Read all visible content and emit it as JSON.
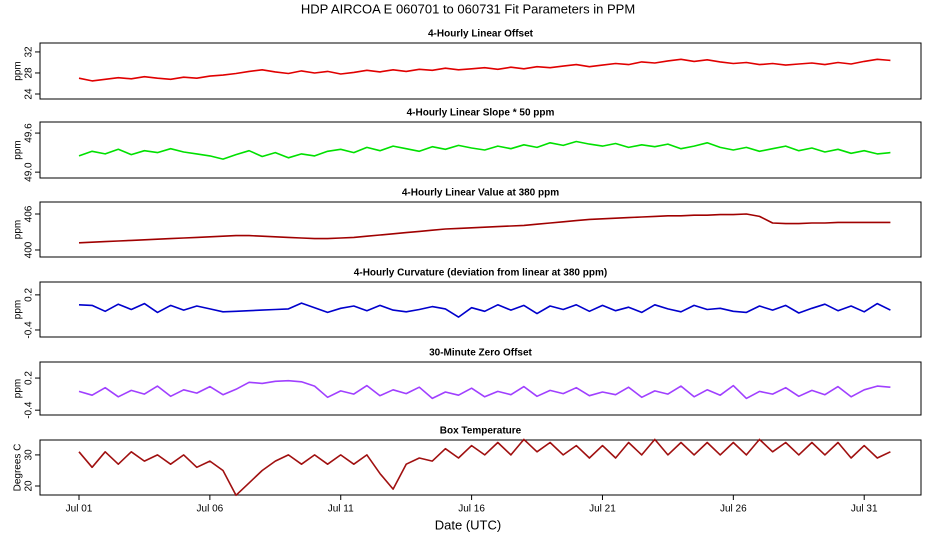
{
  "title": "HDP   AIRCOA E   060701 to 060731   Fit Parameters in PPM",
  "xlabel": "Date (UTC)",
  "chart_data": [
    {
      "type": "line",
      "title": "4-Hourly Linear Offset",
      "ylabel": "ppm",
      "color": "#e00000",
      "xlim": [
        -0.49,
        33.17
      ],
      "ylim": [
        23.05,
        33.7
      ],
      "yticks": [
        24,
        28,
        32
      ],
      "x": [
        1,
        1.5,
        2,
        2.5,
        3,
        3.5,
        4,
        4.5,
        5,
        5.5,
        6,
        6.5,
        7,
        7.5,
        8,
        8.5,
        9,
        9.5,
        10,
        10.5,
        11,
        11.5,
        12,
        12.5,
        13,
        13.5,
        14,
        14.5,
        15,
        15.5,
        16,
        16.5,
        17,
        17.5,
        18,
        18.5,
        19,
        19.5,
        20,
        20.5,
        21,
        21.5,
        22,
        22.5,
        23,
        23.5,
        24,
        24.5,
        25,
        25.5,
        26,
        26.5,
        27,
        27.5,
        28,
        28.5,
        29,
        29.5,
        30,
        30.5,
        31,
        31.5,
        32
      ],
      "values": [
        27.0,
        26.5,
        26.8,
        27.1,
        26.9,
        27.3,
        27.0,
        26.8,
        27.2,
        27.0,
        27.4,
        27.6,
        27.9,
        28.3,
        28.6,
        28.2,
        27.9,
        28.4,
        28.0,
        28.3,
        27.8,
        28.1,
        28.5,
        28.2,
        28.6,
        28.3,
        28.7,
        28.5,
        28.9,
        28.6,
        28.8,
        29.0,
        28.7,
        29.1,
        28.8,
        29.2,
        29.0,
        29.3,
        29.6,
        29.2,
        29.5,
        29.8,
        29.6,
        30.1,
        29.9,
        30.3,
        30.6,
        30.2,
        30.5,
        30.1,
        29.8,
        30.0,
        29.6,
        29.8,
        29.5,
        29.7,
        29.9,
        29.6,
        30.0,
        29.7,
        30.2,
        30.6,
        30.4
      ]
    },
    {
      "type": "line",
      "title": "4-Hourly Linear Slope * 50 ppm",
      "ylabel": "ppm",
      "color": "#00e000",
      "xlim": [
        -0.49,
        33.17
      ],
      "ylim": [
        48.91,
        49.77
      ],
      "yticks": [
        {
          "value": 49,
          "label": "49.0"
        },
        49.6
      ],
      "x": [
        1,
        1.5,
        2,
        2.5,
        3,
        3.5,
        4,
        4.5,
        5,
        5.5,
        6,
        6.5,
        7,
        7.5,
        8,
        8.5,
        9,
        9.5,
        10,
        10.5,
        11,
        11.5,
        12,
        12.5,
        13,
        13.5,
        14,
        14.5,
        15,
        15.5,
        16,
        16.5,
        17,
        17.5,
        18,
        18.5,
        19,
        19.5,
        20,
        20.5,
        21,
        21.5,
        22,
        22.5,
        23,
        23.5,
        24,
        24.5,
        25,
        25.5,
        26,
        26.5,
        27,
        27.5,
        28,
        28.5,
        29,
        29.5,
        30,
        30.5,
        31,
        31.5,
        32
      ],
      "values": [
        49.25,
        49.32,
        49.28,
        49.35,
        49.27,
        49.33,
        49.3,
        49.36,
        49.31,
        49.28,
        49.25,
        49.2,
        49.27,
        49.33,
        49.24,
        49.3,
        49.22,
        49.28,
        49.25,
        49.32,
        49.35,
        49.3,
        49.38,
        49.33,
        49.4,
        49.36,
        49.32,
        49.39,
        49.35,
        49.41,
        49.37,
        49.34,
        49.4,
        49.36,
        49.42,
        49.38,
        49.45,
        49.41,
        49.47,
        49.43,
        49.4,
        49.44,
        49.38,
        49.42,
        49.39,
        49.43,
        49.36,
        49.4,
        49.45,
        49.38,
        49.34,
        49.38,
        49.32,
        49.36,
        49.4,
        49.33,
        49.37,
        49.31,
        49.35,
        49.29,
        49.33,
        49.28,
        49.3
      ]
    },
    {
      "type": "line",
      "title": "4-Hourly Linear Value at 380 ppm",
      "ylabel": "ppm",
      "color": "#a00000",
      "xlim": [
        -0.49,
        33.17
      ],
      "ylim": [
        398.83,
        408
      ],
      "yticks": [
        400,
        406
      ],
      "x": [
        1,
        1.5,
        2,
        2.5,
        3,
        3.5,
        4,
        4.5,
        5,
        5.5,
        6,
        6.5,
        7,
        7.5,
        8,
        8.5,
        9,
        9.5,
        10,
        10.5,
        11,
        11.5,
        12,
        12.5,
        13,
        13.5,
        14,
        14.5,
        15,
        15.5,
        16,
        16.5,
        17,
        17.5,
        18,
        18.5,
        19,
        19.5,
        20,
        20.5,
        21,
        21.5,
        22,
        22.5,
        23,
        23.5,
        24,
        24.5,
        25,
        25.5,
        26,
        26.5,
        27,
        27.5,
        28,
        28.5,
        29,
        29.5,
        30,
        30.5,
        31,
        31.5,
        32
      ],
      "values": [
        401.2,
        401.3,
        401.4,
        401.5,
        401.6,
        401.7,
        401.8,
        401.9,
        402.0,
        402.1,
        402.2,
        402.3,
        402.4,
        402.4,
        402.3,
        402.2,
        402.1,
        402.0,
        401.9,
        401.9,
        402.0,
        402.1,
        402.3,
        402.5,
        402.7,
        402.9,
        403.1,
        403.3,
        403.5,
        403.6,
        403.7,
        403.8,
        403.9,
        404.0,
        404.1,
        404.3,
        404.5,
        404.7,
        404.9,
        405.1,
        405.2,
        405.3,
        405.4,
        405.5,
        405.6,
        405.7,
        405.7,
        405.8,
        405.8,
        405.9,
        405.9,
        406.0,
        405.6,
        404.5,
        404.4,
        404.4,
        404.5,
        404.5,
        404.6,
        404.6,
        404.6,
        404.6,
        404.6
      ]
    },
    {
      "type": "line",
      "title": "4-Hourly Curvature (deviation from linear at 380 ppm)",
      "ylabel": "ppm",
      "color": "#0000cc",
      "xlim": [
        -0.49,
        33.17
      ],
      "ylim": [
        -0.52,
        0.42
      ],
      "yticks": [
        -0.4,
        0.2
      ],
      "x": [
        1,
        1.5,
        2,
        2.5,
        3,
        3.5,
        4,
        4.5,
        5,
        5.5,
        6,
        6.5,
        7,
        7.5,
        8,
        8.5,
        9,
        9.5,
        10,
        10.5,
        11,
        11.5,
        12,
        12.5,
        13,
        13.5,
        14,
        14.5,
        15,
        15.5,
        16,
        16.5,
        17,
        17.5,
        18,
        18.5,
        19,
        19.5,
        20,
        20.5,
        21,
        21.5,
        22,
        22.5,
        23,
        23.5,
        24,
        24.5,
        25,
        25.5,
        26,
        26.5,
        27,
        27.5,
        28,
        28.5,
        29,
        29.5,
        30,
        30.5,
        31,
        31.5,
        32
      ],
      "values": [
        0.03,
        0.02,
        -0.08,
        0.04,
        -0.05,
        0.05,
        -0.1,
        0.02,
        -0.06,
        0.01,
        -0.04,
        -0.09,
        -0.08,
        -0.07,
        -0.06,
        -0.05,
        -0.04,
        0.06,
        -0.02,
        -0.1,
        -0.03,
        0.01,
        -0.07,
        0.02,
        -0.06,
        -0.09,
        -0.05,
        0.0,
        -0.04,
        -0.18,
        -0.02,
        -0.08,
        0.03,
        -0.06,
        0.02,
        -0.12,
        0.01,
        -0.05,
        0.03,
        -0.08,
        0.02,
        -0.07,
        -0.01,
        -0.1,
        0.03,
        -0.04,
        -0.09,
        0.02,
        -0.05,
        -0.03,
        -0.08,
        -0.1,
        0.01,
        -0.06,
        0.02,
        -0.11,
        -0.03,
        0.04,
        -0.07,
        0.01,
        -0.09,
        0.05,
        -0.06
      ]
    },
    {
      "type": "line",
      "title": "30-Minute Zero Offset",
      "ylabel": "ppm",
      "color": "#a040ff",
      "xlim": [
        -0.49,
        33.17
      ],
      "ylim": [
        -0.49,
        0.5
      ],
      "yticks": [
        -0.4,
        0.2
      ],
      "x": [
        1,
        1.5,
        2,
        2.5,
        3,
        3.5,
        4,
        4.5,
        5,
        5.5,
        6,
        6.5,
        7,
        7.5,
        8,
        8.5,
        9,
        9.5,
        10,
        10.5,
        11,
        11.5,
        12,
        12.5,
        13,
        13.5,
        14,
        14.5,
        15,
        15.5,
        16,
        16.5,
        17,
        17.5,
        18,
        18.5,
        19,
        19.5,
        20,
        20.5,
        21,
        21.5,
        22,
        22.5,
        23,
        23.5,
        24,
        24.5,
        25,
        25.5,
        26,
        26.5,
        27,
        27.5,
        28,
        28.5,
        29,
        29.5,
        30,
        30.5,
        31,
        31.5,
        32
      ],
      "values": [
        -0.05,
        -0.12,
        0.02,
        -0.15,
        -0.03,
        -0.1,
        0.05,
        -0.14,
        -0.02,
        -0.08,
        0.04,
        -0.11,
        -0.01,
        0.12,
        0.1,
        0.14,
        0.15,
        0.13,
        0.05,
        -0.16,
        -0.04,
        -0.1,
        0.06,
        -0.13,
        -0.02,
        -0.09,
        0.03,
        -0.18,
        -0.06,
        -0.12,
        0.01,
        -0.15,
        -0.05,
        -0.11,
        0.04,
        -0.14,
        -0.03,
        -0.09,
        0.02,
        -0.13,
        -0.06,
        -0.11,
        0.03,
        -0.16,
        -0.04,
        -0.1,
        0.05,
        -0.15,
        -0.02,
        -0.12,
        0.06,
        -0.18,
        -0.05,
        -0.1,
        0.02,
        -0.14,
        -0.03,
        -0.11,
        0.04,
        -0.15,
        -0.02,
        0.05,
        0.03
      ]
    },
    {
      "type": "line",
      "title": "Box Temperature",
      "ylabel": "Degrees C",
      "color": "#a01010",
      "xlim": [
        -0.49,
        33.17
      ],
      "ylim": [
        17.1,
        34.8
      ],
      "yticks": [
        20,
        30
      ],
      "xticks": [
        {
          "value": 1,
          "label": "Jul 01"
        },
        {
          "value": 6,
          "label": "Jul 06"
        },
        {
          "value": 11,
          "label": "Jul 11"
        },
        {
          "value": 16,
          "label": "Jul 16"
        },
        {
          "value": 21,
          "label": "Jul 21"
        },
        {
          "value": 26,
          "label": "Jul 26"
        },
        {
          "value": 31,
          "label": "Jul 31"
        }
      ],
      "x": [
        1,
        1.5,
        2,
        2.5,
        3,
        3.5,
        4,
        4.5,
        5,
        5.5,
        6,
        6.5,
        7,
        7.5,
        8,
        8.5,
        9,
        9.5,
        10,
        10.5,
        11,
        11.5,
        12,
        12.5,
        13,
        13.5,
        14,
        14.5,
        15,
        15.5,
        16,
        16.5,
        17,
        17.5,
        18,
        18.5,
        19,
        19.5,
        20,
        20.5,
        21,
        21.5,
        22,
        22.5,
        23,
        23.5,
        24,
        24.5,
        25,
        25.5,
        26,
        26.5,
        27,
        27.5,
        28,
        28.5,
        29,
        29.5,
        30,
        30.5,
        31,
        31.5,
        32
      ],
      "values": [
        31,
        26,
        31,
        27,
        31,
        28,
        30,
        27,
        30,
        26,
        28,
        25,
        17,
        21,
        25,
        28,
        30,
        27,
        30,
        27,
        30,
        27,
        30,
        24,
        19,
        27,
        29,
        28,
        32,
        29,
        33,
        30,
        34,
        30,
        35,
        31,
        34,
        30,
        33,
        29,
        33,
        29,
        34,
        30,
        35,
        30,
        34,
        30,
        34,
        30,
        34,
        30,
        35,
        31,
        34,
        30,
        34,
        30,
        34,
        29,
        33,
        29,
        31
      ]
    }
  ]
}
